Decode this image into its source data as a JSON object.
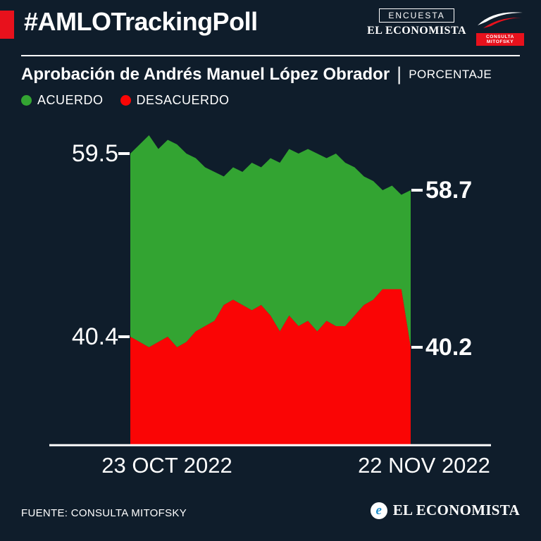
{
  "colors": {
    "background": "#0f1d2b",
    "accent_red": "#e8111c",
    "green": "#33a432",
    "red": "#fa0505",
    "white": "#ffffff"
  },
  "header": {
    "hashtag": "#AMLOTrackingPoll",
    "encuesta_label": "ENCUESTA",
    "brand": "EL ECONOMISTA",
    "mitofsky_label": "CONSULTA MITOFSKY"
  },
  "title": {
    "text": "Aprobación de Andrés Manuel López Obrador",
    "separator": "|",
    "unit_label": "PORCENTAJE"
  },
  "legend": [
    {
      "label": "ACUERDO",
      "color": "#33a432"
    },
    {
      "label": "DESACUERDO",
      "color": "#fa0505"
    }
  ],
  "chart_data": {
    "type": "area",
    "title": "Aprobación de Andrés Manuel López Obrador (porcentaje)",
    "x_axis": {
      "start_label": "23 OCT 2022",
      "end_label": "22 NOV 2022"
    },
    "ylabel": "PORCENTAJE",
    "legend_position": "top-left",
    "grid": false,
    "series": [
      {
        "name": "ACUERDO",
        "color": "#33a432",
        "start_value": 59.5,
        "end_value": 58.7,
        "values": [
          59.5,
          59.7,
          59.9,
          59.6,
          59.8,
          59.7,
          59.5,
          59.4,
          59.2,
          59.1,
          59.0,
          59.2,
          59.1,
          59.3,
          59.2,
          59.4,
          59.3,
          59.6,
          59.5,
          59.6,
          59.5,
          59.4,
          59.5,
          59.3,
          59.2,
          59.0,
          58.9,
          58.7,
          58.8,
          58.6,
          58.7
        ]
      },
      {
        "name": "DESACUERDO",
        "color": "#fa0505",
        "start_value": 40.4,
        "end_value": 40.2,
        "values": [
          40.4,
          40.3,
          40.2,
          40.3,
          40.4,
          40.2,
          40.3,
          40.5,
          40.6,
          40.7,
          41.0,
          41.1,
          41.0,
          40.9,
          41.0,
          40.8,
          40.5,
          40.8,
          40.6,
          40.7,
          40.5,
          40.7,
          40.6,
          40.6,
          40.8,
          41.0,
          41.1,
          41.3,
          41.3,
          41.3,
          40.2
        ]
      }
    ]
  },
  "footer": {
    "source": "FUENTE: CONSULTA MITOFSKY",
    "brand": "EL ECONOMISTA",
    "brand_icon_letter": "e"
  }
}
